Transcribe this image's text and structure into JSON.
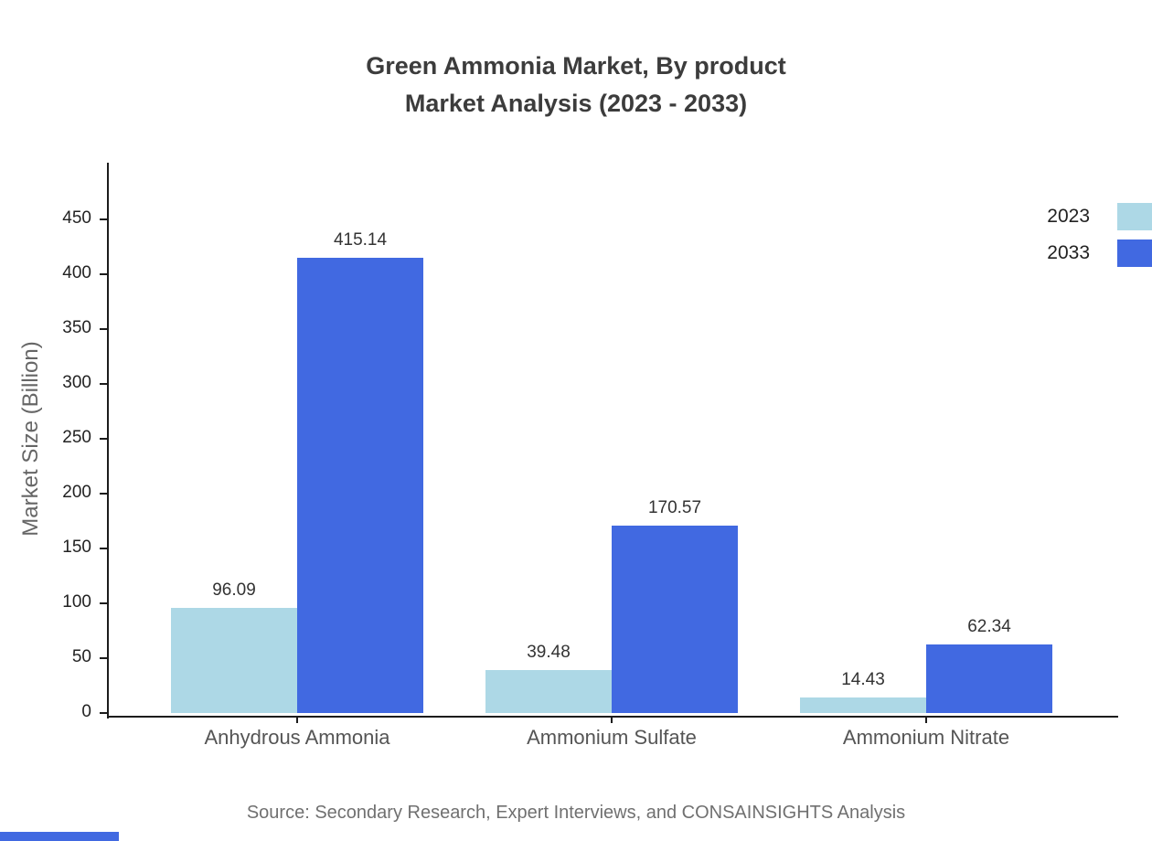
{
  "title": {
    "line1": "Green Ammonia Market, By product",
    "line2": "Market Analysis (2023 - 2033)"
  },
  "source": "Source: Secondary Research, Expert Interviews, and CONSAINSIGHTS Analysis",
  "colors": {
    "series_2023": "#ADD8E6",
    "series_2033": "#4169E1",
    "axis": "#1c1c1c",
    "accent": "#4169E1"
  },
  "chart_data": {
    "type": "bar",
    "title": "Green Ammonia Market, By product Market Analysis (2023 - 2033)",
    "categories": [
      "Anhydrous Ammonia",
      "Ammonium Sulfate",
      "Ammonium Nitrate"
    ],
    "series": [
      {
        "name": "2023",
        "color": "#ADD8E6",
        "values": [
          96.09,
          39.48,
          14.43
        ]
      },
      {
        "name": "2033",
        "color": "#4169E1",
        "values": [
          415.14,
          170.57,
          62.34
        ]
      }
    ],
    "xlabel": "",
    "ylabel": "Market Size (Billion)",
    "ylim": [
      0,
      500
    ],
    "yticks": [
      0,
      50,
      100,
      150,
      200,
      250,
      300,
      350,
      400,
      450
    ],
    "grid": false,
    "legend_position": "top-right",
    "value_labels": true
  }
}
